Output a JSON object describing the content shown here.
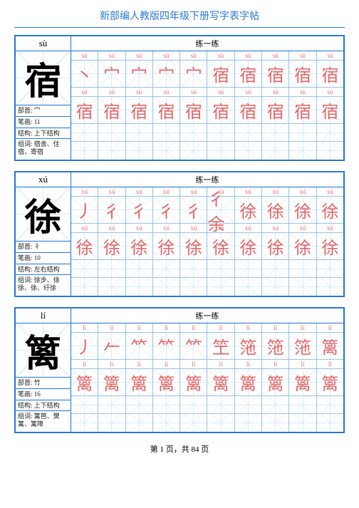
{
  "title": "新部编人教版四年级下册写字表字帖",
  "practice_label": "练一练",
  "footer": "第 1 页，共 84 页",
  "grid_cols": 10,
  "colors": {
    "border": "#2e7bd6",
    "red": "#e86a6a",
    "guide": "#cfe3f7"
  },
  "blocks": [
    {
      "pinyin_head": "sù",
      "big_char": "宿",
      "info": [
        {
          "k": "部首",
          "v": "宀"
        },
        {
          "k": "笔画",
          "v": "11"
        },
        {
          "k": "结构",
          "v": "上下结构"
        },
        {
          "k": "组词",
          "v": "宿舍、住宿、寄宿"
        }
      ],
      "py_row": "sù",
      "strokes": [
        "丶",
        "宀",
        "宀",
        "宀",
        "宀",
        "宿",
        "宿",
        "宿",
        "宿",
        "宿"
      ],
      "full_char": "宿"
    },
    {
      "pinyin_head": "xú",
      "big_char": "徐",
      "info": [
        {
          "k": "部首",
          "v": "彳"
        },
        {
          "k": "笔画",
          "v": "10"
        },
        {
          "k": "结构",
          "v": "左右结构"
        },
        {
          "k": "组词",
          "v": "徐步、徐徐、徐、纡徐"
        }
      ],
      "py_row": "xú",
      "strokes": [
        "丿",
        "彳",
        "彳",
        "彳",
        "彳",
        "彳余",
        "徐",
        "徐",
        "徐",
        "徐"
      ],
      "full_char": "徐"
    },
    {
      "pinyin_head": "lí",
      "big_char": "篱",
      "info": [
        {
          "k": "部首",
          "v": "竹"
        },
        {
          "k": "笔画",
          "v": "16"
        },
        {
          "k": "结构",
          "v": "上下结构"
        },
        {
          "k": "组词",
          "v": "篱笆、樊篱、篱障"
        }
      ],
      "py_row": "lí",
      "strokes": [
        "丿",
        "𠂉",
        "⺮",
        "⺮",
        "⺮",
        "笁",
        "筂",
        "筂",
        "筂",
        "篱"
      ],
      "full_char": "篱"
    }
  ]
}
